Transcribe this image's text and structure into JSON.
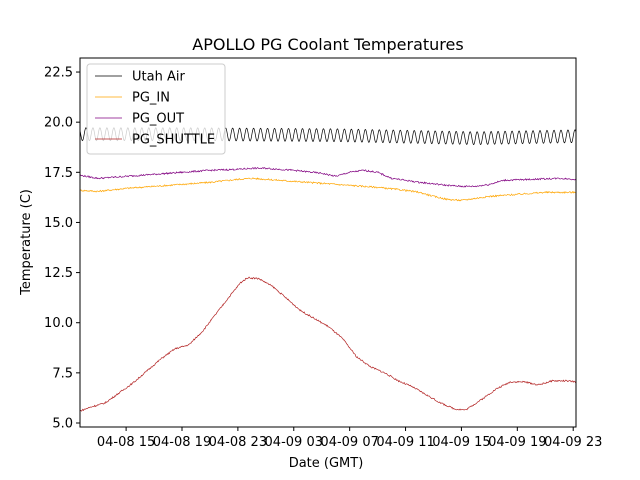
{
  "chart_data": {
    "type": "line",
    "title": "APOLLO PG Coolant Temperatures",
    "xlabel": "Date (GMT)",
    "ylabel": "Temperature (C)",
    "xlim": [
      11.7,
      47.2
    ],
    "ylim": [
      4.8,
      23.2
    ],
    "x_unit": "hours since 04-08 00:00 GMT",
    "xticks": [
      {
        "value": 15,
        "label": "04-08 15"
      },
      {
        "value": 19,
        "label": "04-08 19"
      },
      {
        "value": 23,
        "label": "04-08 23"
      },
      {
        "value": 27,
        "label": "04-09 03"
      },
      {
        "value": 31,
        "label": "04-09 07"
      },
      {
        "value": 35,
        "label": "04-09 11"
      },
      {
        "value": 39,
        "label": "04-09 15"
      },
      {
        "value": 43,
        "label": "04-09 19"
      },
      {
        "value": 47,
        "label": "04-09 23"
      }
    ],
    "yticks": [
      {
        "value": 5.0,
        "label": "5.0"
      },
      {
        "value": 7.5,
        "label": "7.5"
      },
      {
        "value": 10.0,
        "label": "10.0"
      },
      {
        "value": 12.5,
        "label": "12.5"
      },
      {
        "value": 15.0,
        "label": "15.0"
      },
      {
        "value": 17.5,
        "label": "17.5"
      },
      {
        "value": 20.0,
        "label": "20.0"
      },
      {
        "value": 22.5,
        "label": "22.5"
      }
    ],
    "legend_position": "top-left",
    "series": [
      {
        "name": "Utah Air",
        "color": "#000000",
        "oscillation": {
          "amplitude": 0.32,
          "period_hours": 0.5
        },
        "points": [
          [
            11.7,
            19.4
          ],
          [
            20,
            19.4
          ],
          [
            30,
            19.35
          ],
          [
            40,
            19.2
          ],
          [
            47.2,
            19.3
          ]
        ]
      },
      {
        "name": "PG_IN",
        "color": "#ffa500",
        "points": [
          [
            11.7,
            16.6
          ],
          [
            13,
            16.55
          ],
          [
            15,
            16.7
          ],
          [
            18,
            16.85
          ],
          [
            21,
            17.0
          ],
          [
            23,
            17.15
          ],
          [
            24,
            17.2
          ],
          [
            25,
            17.15
          ],
          [
            27,
            17.05
          ],
          [
            29,
            16.95
          ],
          [
            31,
            16.85
          ],
          [
            33,
            16.75
          ],
          [
            35,
            16.6
          ],
          [
            36,
            16.5
          ],
          [
            37,
            16.3
          ],
          [
            38,
            16.15
          ],
          [
            39,
            16.1
          ],
          [
            40,
            16.2
          ],
          [
            41,
            16.3
          ],
          [
            43,
            16.4
          ],
          [
            45,
            16.5
          ],
          [
            47.2,
            16.5
          ]
        ]
      },
      {
        "name": "PG_OUT",
        "color": "#800080",
        "points": [
          [
            11.7,
            17.35
          ],
          [
            13,
            17.2
          ],
          [
            15,
            17.3
          ],
          [
            18,
            17.45
          ],
          [
            21,
            17.6
          ],
          [
            23,
            17.65
          ],
          [
            24,
            17.7
          ],
          [
            25,
            17.7
          ],
          [
            27,
            17.6
          ],
          [
            29,
            17.45
          ],
          [
            30,
            17.3
          ],
          [
            31,
            17.5
          ],
          [
            32,
            17.6
          ],
          [
            33,
            17.5
          ],
          [
            34,
            17.2
          ],
          [
            35,
            17.1
          ],
          [
            36,
            17.0
          ],
          [
            38,
            16.85
          ],
          [
            39,
            16.8
          ],
          [
            40,
            16.8
          ],
          [
            41,
            16.9
          ],
          [
            42,
            17.1
          ],
          [
            44,
            17.15
          ],
          [
            46,
            17.2
          ],
          [
            47.2,
            17.15
          ]
        ]
      },
      {
        "name": "PG_SHUTTLE",
        "color": "#b22222",
        "points": [
          [
            11.7,
            5.6
          ],
          [
            12.5,
            5.8
          ],
          [
            13.5,
            6.0
          ],
          [
            14.5,
            6.5
          ],
          [
            15.5,
            7.0
          ],
          [
            16.5,
            7.6
          ],
          [
            17.5,
            8.2
          ],
          [
            18.5,
            8.7
          ],
          [
            19.5,
            8.9
          ],
          [
            20.5,
            9.6
          ],
          [
            21.5,
            10.5
          ],
          [
            22.5,
            11.4
          ],
          [
            23.2,
            12.0
          ],
          [
            23.7,
            12.25
          ],
          [
            24.5,
            12.2
          ],
          [
            25.5,
            11.8
          ],
          [
            26.5,
            11.2
          ],
          [
            27.5,
            10.6
          ],
          [
            28.5,
            10.2
          ],
          [
            29.5,
            9.8
          ],
          [
            30.5,
            9.2
          ],
          [
            31.5,
            8.3
          ],
          [
            32.5,
            7.8
          ],
          [
            33.5,
            7.5
          ],
          [
            34.5,
            7.1
          ],
          [
            35.5,
            6.8
          ],
          [
            36.5,
            6.4
          ],
          [
            37.5,
            6.0
          ],
          [
            38.5,
            5.7
          ],
          [
            39.3,
            5.65
          ],
          [
            40.5,
            6.2
          ],
          [
            41.5,
            6.7
          ],
          [
            42.5,
            7.05
          ],
          [
            43.5,
            7.05
          ],
          [
            44.5,
            6.9
          ],
          [
            45.5,
            7.1
          ],
          [
            46.5,
            7.1
          ],
          [
            47.2,
            7.05
          ]
        ]
      }
    ]
  }
}
